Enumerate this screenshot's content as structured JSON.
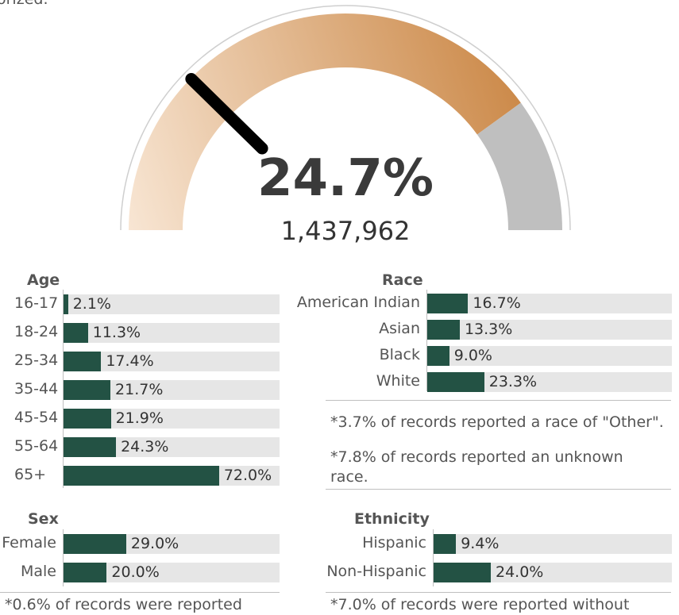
{
  "top_text": "orized.",
  "gauge": {
    "percent": 24.7,
    "percent_label": "24.7%",
    "count_label": "1,437,962"
  },
  "chart_data": [
    {
      "type": "bar",
      "title": "Age",
      "categories": [
        "16-17",
        "18-24",
        "25-34",
        "35-44",
        "45-54",
        "55-64",
        "65+"
      ],
      "values": [
        2.1,
        11.3,
        17.4,
        21.7,
        21.9,
        24.3,
        72.0
      ],
      "value_labels": [
        "2.1%",
        "11.3%",
        "17.4%",
        "21.7%",
        "21.9%",
        "24.3%",
        "72.0%"
      ]
    },
    {
      "type": "bar",
      "title": "Race",
      "categories": [
        "American Indian",
        "Asian",
        "Black",
        "White"
      ],
      "values": [
        16.7,
        13.3,
        9.0,
        23.3
      ],
      "value_labels": [
        "16.7%",
        "13.3%",
        "9.0%",
        "23.3%"
      ],
      "notes": [
        "*3.7% of records reported a race of \"Other\".",
        "*7.8% of records reported an unknown race."
      ]
    },
    {
      "type": "bar",
      "title": "Sex",
      "categories": [
        "Female",
        "Male"
      ],
      "values": [
        29.0,
        20.0
      ],
      "value_labels": [
        "29.0%",
        "20.0%"
      ],
      "notes": [
        "*0.6% of records were reported"
      ]
    },
    {
      "type": "bar",
      "title": "Ethnicity",
      "categories": [
        "Hispanic",
        "Non-Hispanic"
      ],
      "values": [
        9.4,
        24.0
      ],
      "value_labels": [
        "9.4%",
        "24.0%"
      ],
      "notes": [
        "*7.0% of records were reported without"
      ]
    }
  ],
  "colors": {
    "bar_fill": "#235244",
    "bar_track": "#e6e6e6",
    "gauge_light": "#f8e6d4",
    "gauge_dark": "#cc8a4a",
    "gauge_rest": "#bfbfbf",
    "needle": "#000000"
  }
}
